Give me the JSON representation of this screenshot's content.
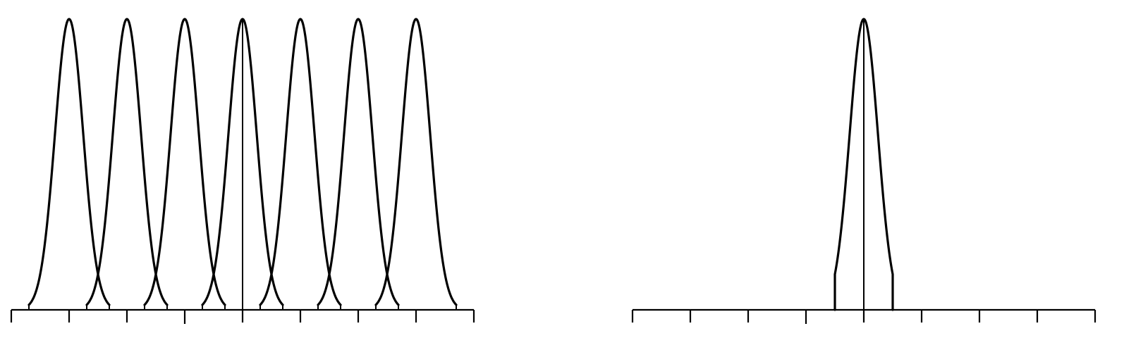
{
  "colors": {
    "ink": "#000000",
    "background": "#ffffff"
  },
  "left_panel": {
    "tick_count": 9,
    "gaussian_centers": [
      1,
      2,
      3,
      4,
      5,
      6,
      7
    ],
    "center_line_at": 4
  },
  "right_panel": {
    "tick_count": 9,
    "peak_at": 4,
    "truncated": true
  }
}
